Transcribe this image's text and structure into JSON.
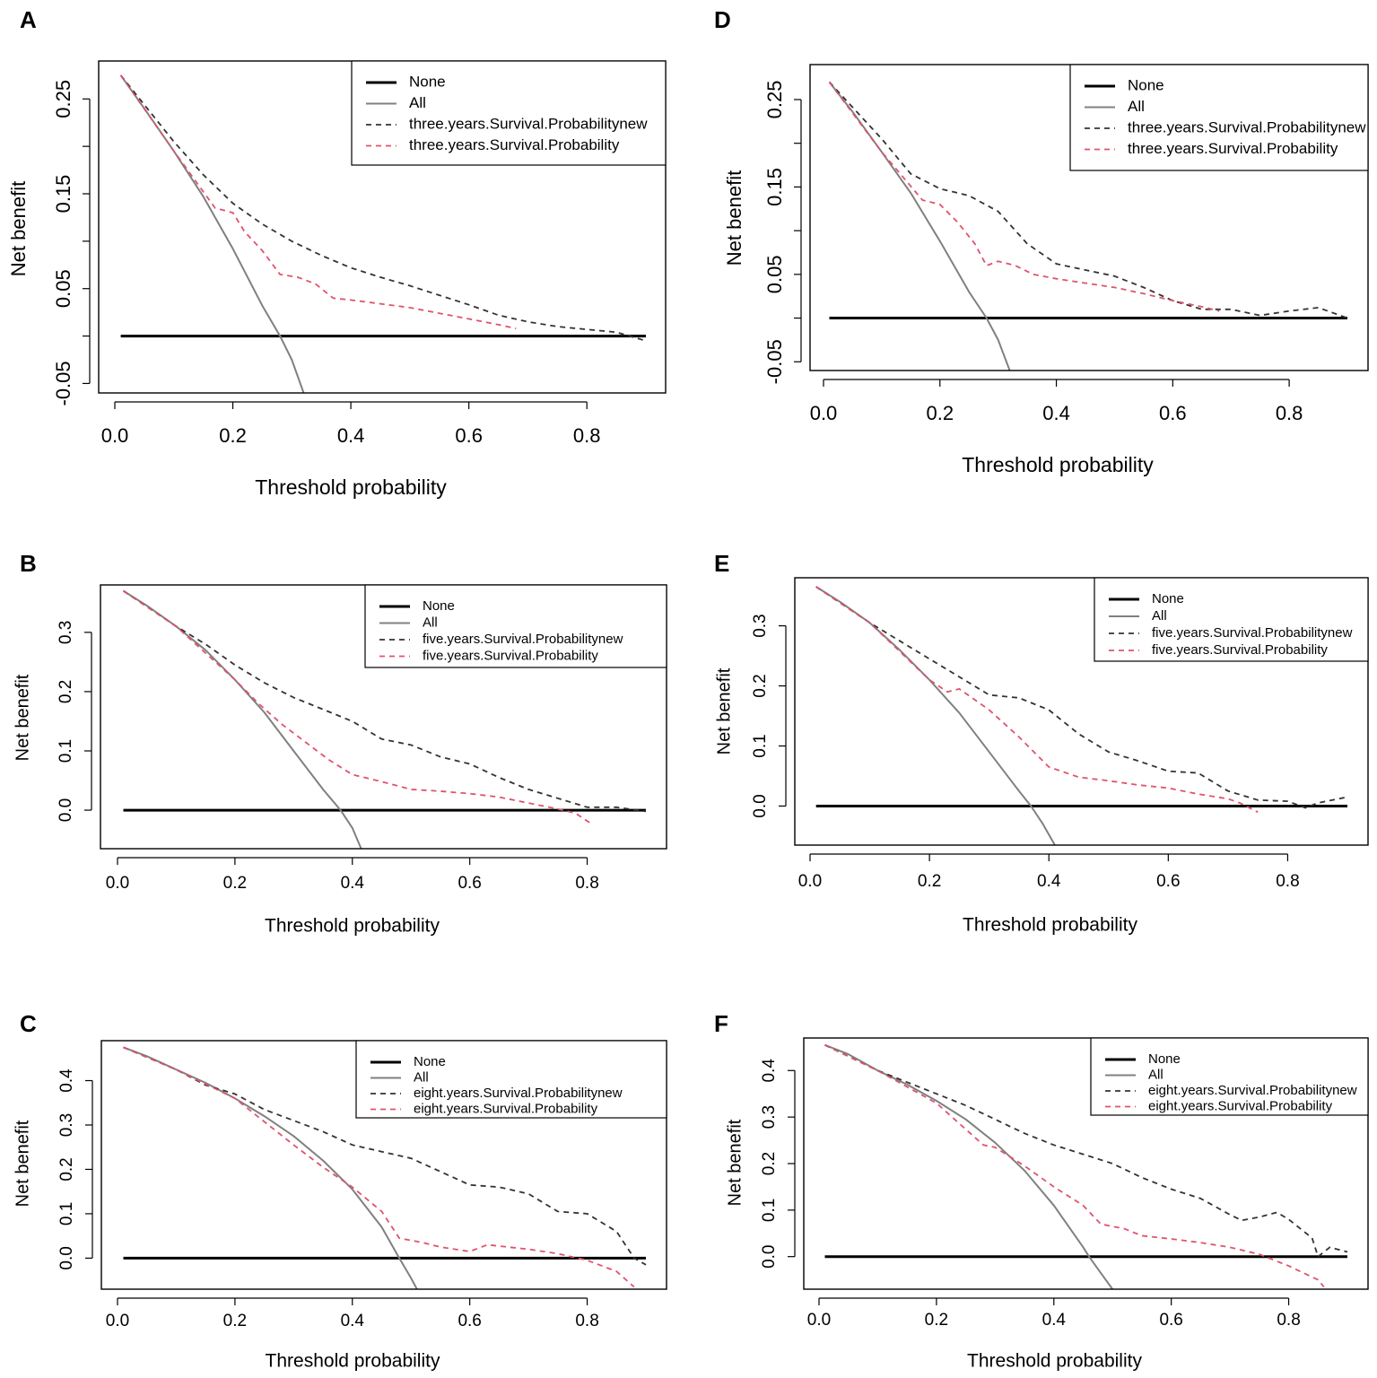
{
  "figure": {
    "panels": [
      "A",
      "D",
      "B",
      "E",
      "C",
      "F"
    ]
  },
  "colors": {
    "none_line": "#000000",
    "all_line": "#808080",
    "new_model_line": "#333333",
    "old_model_line": "#df536b",
    "axis": "#000000"
  },
  "chart_data": [
    {
      "panel": "A",
      "type": "line",
      "xlabel": "Threshold probability",
      "ylabel": "Net benefit",
      "xlim": [
        0.0,
        0.9
      ],
      "ylim": [
        -0.06,
        0.29
      ],
      "xticks": [
        "0.0",
        "0.2",
        "0.4",
        "0.6",
        "0.8"
      ],
      "xtick_values": [
        0.0,
        0.2,
        0.4,
        0.6,
        0.8
      ],
      "yticks": [
        "-0.05",
        "0.05",
        "0.15",
        "0.25"
      ],
      "ytick_values": [
        -0.05,
        0.05,
        0.15,
        0.25
      ],
      "minor_ytick_values": [
        0.0,
        0.1,
        0.2
      ],
      "legend": [
        "None",
        "All",
        "three.years.Survival.Probabilitynew",
        "three.years.Survival.Probability"
      ],
      "series": [
        {
          "name": "None",
          "style": "solid-thick",
          "x": [
            0.01,
            0.9
          ],
          "y": [
            0.0,
            0.0
          ]
        },
        {
          "name": "All",
          "style": "solid-gray",
          "x": [
            0.01,
            0.05,
            0.1,
            0.15,
            0.2,
            0.25,
            0.28,
            0.3,
            0.32
          ],
          "y": [
            0.275,
            0.24,
            0.195,
            0.147,
            0.092,
            0.032,
            0.0,
            -0.025,
            -0.06
          ]
        },
        {
          "name": "three.years.Survival.Probabilitynew",
          "style": "dashed-dark",
          "x": [
            0.01,
            0.1,
            0.15,
            0.2,
            0.25,
            0.3,
            0.35,
            0.4,
            0.45,
            0.5,
            0.55,
            0.6,
            0.65,
            0.7,
            0.75,
            0.8,
            0.85,
            0.9
          ],
          "y": [
            0.275,
            0.205,
            0.17,
            0.14,
            0.118,
            0.1,
            0.085,
            0.072,
            0.062,
            0.053,
            0.043,
            0.033,
            0.022,
            0.015,
            0.01,
            0.007,
            0.004,
            -0.005
          ]
        },
        {
          "name": "three.years.Survival.Probability",
          "style": "dashed-red",
          "x": [
            0.01,
            0.1,
            0.17,
            0.2,
            0.22,
            0.25,
            0.28,
            0.31,
            0.34,
            0.37,
            0.4,
            0.45,
            0.5,
            0.55,
            0.6,
            0.65,
            0.68
          ],
          "y": [
            0.275,
            0.195,
            0.135,
            0.13,
            0.11,
            0.09,
            0.065,
            0.062,
            0.055,
            0.04,
            0.038,
            0.034,
            0.03,
            0.024,
            0.018,
            0.012,
            0.008
          ]
        }
      ]
    },
    {
      "panel": "D",
      "type": "line",
      "xlabel": "Threshold probability",
      "ylabel": "Net benefit",
      "xlim": [
        0.0,
        0.9
      ],
      "ylim": [
        -0.06,
        0.29
      ],
      "xticks": [
        "0.0",
        "0.2",
        "0.4",
        "0.6",
        "0.8"
      ],
      "xtick_values": [
        0.0,
        0.2,
        0.4,
        0.6,
        0.8
      ],
      "yticks": [
        "-0.05",
        "0.05",
        "0.15",
        "0.25"
      ],
      "ytick_values": [
        -0.05,
        0.05,
        0.15,
        0.25
      ],
      "minor_ytick_values": [
        0.0,
        0.1,
        0.2
      ],
      "legend": [
        "None",
        "All",
        "three.years.Survival.Probabilitynew",
        "three.years.Survival.Probability"
      ],
      "series": [
        {
          "name": "None",
          "style": "solid-thick",
          "x": [
            0.01,
            0.9
          ],
          "y": [
            0.0,
            0.0
          ]
        },
        {
          "name": "All",
          "style": "solid-gray",
          "x": [
            0.01,
            0.05,
            0.1,
            0.15,
            0.2,
            0.25,
            0.28,
            0.3,
            0.32
          ],
          "y": [
            0.27,
            0.236,
            0.19,
            0.143,
            0.088,
            0.03,
            0.0,
            -0.025,
            -0.06
          ]
        },
        {
          "name": "three.years.Survival.Probabilitynew",
          "style": "dashed-dark",
          "x": [
            0.01,
            0.1,
            0.15,
            0.2,
            0.25,
            0.3,
            0.35,
            0.4,
            0.45,
            0.5,
            0.55,
            0.6,
            0.65,
            0.7,
            0.75,
            0.8,
            0.85,
            0.9
          ],
          "y": [
            0.27,
            0.205,
            0.165,
            0.148,
            0.14,
            0.122,
            0.085,
            0.062,
            0.055,
            0.048,
            0.035,
            0.02,
            0.01,
            0.01,
            0.003,
            0.008,
            0.012,
            0.0
          ]
        },
        {
          "name": "three.years.Survival.Probability",
          "style": "dashed-red",
          "x": [
            0.01,
            0.1,
            0.17,
            0.2,
            0.23,
            0.26,
            0.28,
            0.3,
            0.33,
            0.36,
            0.4,
            0.45,
            0.5,
            0.55,
            0.6,
            0.65,
            0.68
          ],
          "y": [
            0.27,
            0.19,
            0.135,
            0.13,
            0.11,
            0.085,
            0.06,
            0.065,
            0.06,
            0.05,
            0.045,
            0.04,
            0.035,
            0.028,
            0.02,
            0.013,
            0.008
          ]
        }
      ]
    },
    {
      "panel": "B",
      "type": "line",
      "xlabel": "Threshold probability",
      "ylabel": "Net benefit",
      "xlim": [
        0.0,
        0.9
      ],
      "ylim": [
        -0.065,
        0.38
      ],
      "xticks": [
        "0.0",
        "0.2",
        "0.4",
        "0.6",
        "0.8"
      ],
      "xtick_values": [
        0.0,
        0.2,
        0.4,
        0.6,
        0.8
      ],
      "yticks": [
        "0.0",
        "0.1",
        "0.2",
        "0.3"
      ],
      "ytick_values": [
        0.0,
        0.1,
        0.2,
        0.3
      ],
      "minor_ytick_values": [],
      "legend": [
        "None",
        "All",
        "five.years.Survival.Probabilitynew",
        "five.years.Survival.Probability"
      ],
      "series": [
        {
          "name": "None",
          "style": "solid-thick",
          "x": [
            0.01,
            0.9
          ],
          "y": [
            0.0,
            0.0
          ]
        },
        {
          "name": "All",
          "style": "solid-gray",
          "x": [
            0.01,
            0.05,
            0.1,
            0.15,
            0.2,
            0.25,
            0.3,
            0.35,
            0.38,
            0.4,
            0.415
          ],
          "y": [
            0.37,
            0.345,
            0.31,
            0.27,
            0.22,
            0.165,
            0.1,
            0.035,
            0.0,
            -0.03,
            -0.065
          ]
        },
        {
          "name": "five.years.Survival.Probabilitynew",
          "style": "dashed-dark",
          "x": [
            0.01,
            0.1,
            0.15,
            0.2,
            0.25,
            0.3,
            0.35,
            0.4,
            0.45,
            0.5,
            0.55,
            0.6,
            0.65,
            0.7,
            0.75,
            0.8,
            0.85,
            0.9
          ],
          "y": [
            0.37,
            0.31,
            0.28,
            0.245,
            0.215,
            0.19,
            0.17,
            0.15,
            0.12,
            0.11,
            0.09,
            0.078,
            0.055,
            0.035,
            0.02,
            0.005,
            0.005,
            -0.002
          ]
        },
        {
          "name": "five.years.Survival.Probability",
          "style": "dashed-red",
          "x": [
            0.01,
            0.1,
            0.2,
            0.24,
            0.28,
            0.32,
            0.36,
            0.4,
            0.45,
            0.5,
            0.55,
            0.6,
            0.65,
            0.7,
            0.75,
            0.78,
            0.81
          ],
          "y": [
            0.37,
            0.31,
            0.22,
            0.18,
            0.145,
            0.115,
            0.085,
            0.06,
            0.048,
            0.035,
            0.032,
            0.028,
            0.022,
            0.012,
            0.002,
            -0.005,
            -0.025
          ]
        }
      ]
    },
    {
      "panel": "E",
      "type": "line",
      "xlabel": "Threshold probability",
      "ylabel": "Net benefit",
      "xlim": [
        0.0,
        0.9
      ],
      "ylim": [
        -0.065,
        0.38
      ],
      "xticks": [
        "0.0",
        "0.2",
        "0.4",
        "0.6",
        "0.8"
      ],
      "xtick_values": [
        0.0,
        0.2,
        0.4,
        0.6,
        0.8
      ],
      "yticks": [
        "0.0",
        "0.1",
        "0.2",
        "0.3"
      ],
      "ytick_values": [
        0.0,
        0.1,
        0.2,
        0.3
      ],
      "minor_ytick_values": [],
      "legend": [
        "None",
        "All",
        "five.years.Survival.Probabilitynew",
        "five.years.Survival.Probability"
      ],
      "series": [
        {
          "name": "None",
          "style": "solid-thick",
          "x": [
            0.01,
            0.9
          ],
          "y": [
            0.0,
            0.0
          ]
        },
        {
          "name": "All",
          "style": "solid-gray",
          "x": [
            0.01,
            0.05,
            0.1,
            0.15,
            0.2,
            0.25,
            0.3,
            0.35,
            0.37,
            0.39,
            0.41
          ],
          "y": [
            0.365,
            0.34,
            0.305,
            0.26,
            0.21,
            0.155,
            0.09,
            0.025,
            0.0,
            -0.03,
            -0.065
          ]
        },
        {
          "name": "five.years.Survival.Probabilitynew",
          "style": "dashed-dark",
          "x": [
            0.01,
            0.1,
            0.15,
            0.2,
            0.25,
            0.3,
            0.35,
            0.4,
            0.45,
            0.5,
            0.55,
            0.6,
            0.65,
            0.7,
            0.75,
            0.8,
            0.83,
            0.85,
            0.9
          ],
          "y": [
            0.365,
            0.305,
            0.275,
            0.245,
            0.215,
            0.185,
            0.18,
            0.16,
            0.12,
            0.09,
            0.075,
            0.058,
            0.055,
            0.025,
            0.01,
            0.008,
            -0.003,
            0.005,
            0.015
          ]
        },
        {
          "name": "five.years.Survival.Probability",
          "style": "dashed-red",
          "x": [
            0.01,
            0.1,
            0.2,
            0.23,
            0.25,
            0.3,
            0.35,
            0.4,
            0.45,
            0.5,
            0.55,
            0.6,
            0.65,
            0.7,
            0.72,
            0.75
          ],
          "y": [
            0.365,
            0.305,
            0.21,
            0.19,
            0.195,
            0.16,
            0.115,
            0.065,
            0.048,
            0.042,
            0.035,
            0.03,
            0.02,
            0.012,
            0.005,
            -0.01
          ]
        }
      ]
    },
    {
      "panel": "C",
      "type": "line",
      "xlabel": "Threshold probability",
      "ylabel": "Net benefit",
      "xlim": [
        0.0,
        0.9
      ],
      "ylim": [
        -0.07,
        0.49
      ],
      "xticks": [
        "0.0",
        "0.2",
        "0.4",
        "0.6",
        "0.8"
      ],
      "xtick_values": [
        0.0,
        0.2,
        0.4,
        0.6,
        0.8
      ],
      "yticks": [
        "0.0",
        "0.1",
        "0.2",
        "0.3",
        "0.4"
      ],
      "ytick_values": [
        0.0,
        0.1,
        0.2,
        0.3,
        0.4
      ],
      "minor_ytick_values": [],
      "legend": [
        "None",
        "All",
        "eight.years.Survival.Probabilitynew",
        "eight.years.Survival.Probability"
      ],
      "series": [
        {
          "name": "None",
          "style": "solid-thick",
          "x": [
            0.01,
            0.9
          ],
          "y": [
            0.0,
            0.0
          ]
        },
        {
          "name": "All",
          "style": "solid-gray",
          "x": [
            0.01,
            0.05,
            0.1,
            0.15,
            0.2,
            0.25,
            0.3,
            0.35,
            0.4,
            0.45,
            0.48,
            0.5,
            0.51
          ],
          "y": [
            0.475,
            0.455,
            0.425,
            0.395,
            0.36,
            0.32,
            0.275,
            0.22,
            0.155,
            0.07,
            0.0,
            -0.045,
            -0.07
          ]
        },
        {
          "name": "eight.years.Survival.Probabilitynew",
          "style": "dashed-dark",
          "x": [
            0.01,
            0.1,
            0.15,
            0.2,
            0.25,
            0.3,
            0.35,
            0.4,
            0.45,
            0.5,
            0.55,
            0.6,
            0.65,
            0.7,
            0.75,
            0.8,
            0.85,
            0.88,
            0.9
          ],
          "y": [
            0.475,
            0.425,
            0.39,
            0.37,
            0.335,
            0.31,
            0.285,
            0.255,
            0.24,
            0.225,
            0.195,
            0.165,
            0.16,
            0.145,
            0.105,
            0.1,
            0.06,
            0.0,
            -0.015
          ]
        },
        {
          "name": "eight.years.Survival.Probability",
          "style": "dashed-red",
          "x": [
            0.01,
            0.1,
            0.2,
            0.3,
            0.35,
            0.4,
            0.45,
            0.48,
            0.52,
            0.55,
            0.6,
            0.63,
            0.7,
            0.75,
            0.8,
            0.85,
            0.88
          ],
          "y": [
            0.475,
            0.425,
            0.36,
            0.255,
            0.205,
            0.16,
            0.105,
            0.045,
            0.035,
            0.025,
            0.015,
            0.03,
            0.02,
            0.01,
            -0.005,
            -0.03,
            -0.065
          ]
        }
      ]
    },
    {
      "panel": "F",
      "type": "line",
      "xlabel": "Threshold probability",
      "ylabel": "Net benefit",
      "xlim": [
        0.0,
        0.9
      ],
      "ylim": [
        -0.07,
        0.47
      ],
      "xticks": [
        "0.0",
        "0.2",
        "0.4",
        "0.6",
        "0.8"
      ],
      "xtick_values": [
        0.0,
        0.2,
        0.4,
        0.6,
        0.8
      ],
      "yticks": [
        "0.0",
        "0.1",
        "0.2",
        "0.3",
        "0.4"
      ],
      "ytick_values": [
        0.0,
        0.1,
        0.2,
        0.3,
        0.4
      ],
      "minor_ytick_values": [],
      "legend": [
        "None",
        "All",
        "eight.years.Survival.Probabilitynew",
        "eight.years.Survival.Probability"
      ],
      "series": [
        {
          "name": "None",
          "style": "solid-thick",
          "x": [
            0.01,
            0.9
          ],
          "y": [
            0.0,
            0.0
          ]
        },
        {
          "name": "All",
          "style": "solid-gray",
          "x": [
            0.01,
            0.05,
            0.1,
            0.15,
            0.2,
            0.25,
            0.3,
            0.35,
            0.4,
            0.45,
            0.46,
            0.48,
            0.5
          ],
          "y": [
            0.455,
            0.435,
            0.4,
            0.37,
            0.335,
            0.295,
            0.245,
            0.185,
            0.11,
            0.02,
            0.0,
            -0.035,
            -0.07
          ]
        },
        {
          "name": "eight.years.Survival.Probabilitynew",
          "style": "dashed-dark",
          "x": [
            0.01,
            0.1,
            0.15,
            0.2,
            0.25,
            0.3,
            0.35,
            0.4,
            0.45,
            0.5,
            0.55,
            0.6,
            0.65,
            0.7,
            0.72,
            0.75,
            0.78,
            0.8,
            0.84,
            0.85,
            0.87,
            0.9
          ],
          "y": [
            0.455,
            0.4,
            0.375,
            0.35,
            0.325,
            0.295,
            0.265,
            0.24,
            0.22,
            0.2,
            0.17,
            0.145,
            0.125,
            0.09,
            0.078,
            0.085,
            0.095,
            0.08,
            0.04,
            0.0,
            0.02,
            0.01
          ]
        },
        {
          "name": "eight.years.Survival.Probability",
          "style": "dashed-red",
          "x": [
            0.01,
            0.1,
            0.2,
            0.28,
            0.3,
            0.35,
            0.4,
            0.45,
            0.48,
            0.52,
            0.55,
            0.6,
            0.65,
            0.7,
            0.75,
            0.8,
            0.85,
            0.86
          ],
          "y": [
            0.455,
            0.4,
            0.33,
            0.24,
            0.235,
            0.195,
            0.15,
            0.11,
            0.07,
            0.06,
            0.045,
            0.038,
            0.03,
            0.02,
            0.005,
            -0.02,
            -0.05,
            -0.065
          ]
        }
      ]
    }
  ]
}
